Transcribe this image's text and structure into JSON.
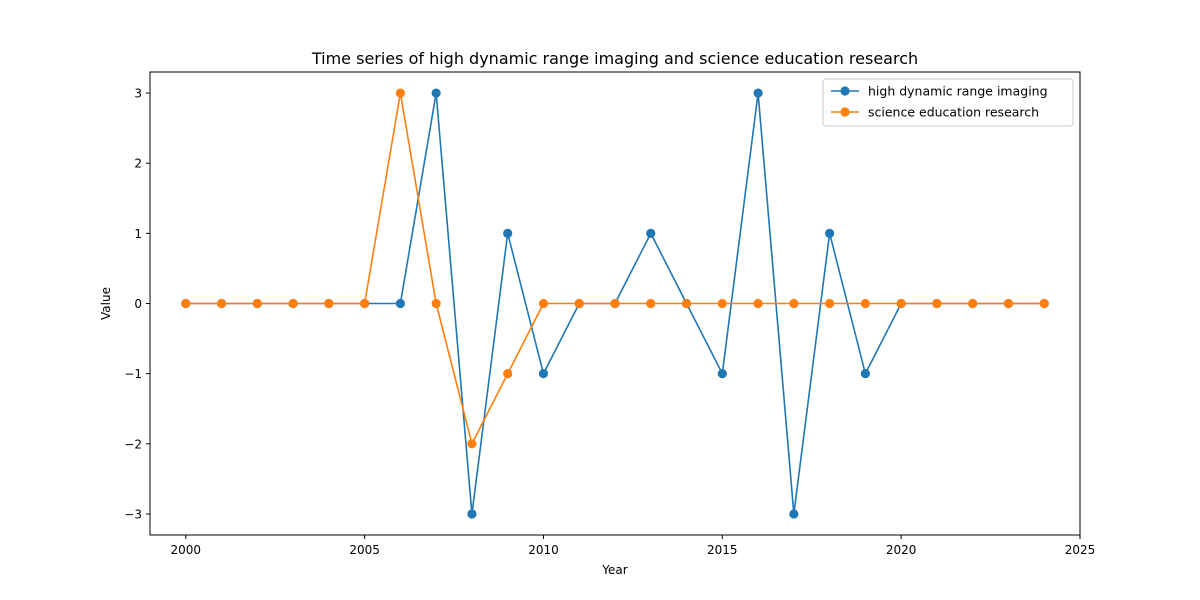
{
  "chart_data": {
    "type": "line",
    "title": "Time series of high dynamic range imaging and science education research",
    "xlabel": "Year",
    "ylabel": "Value",
    "xlim": [
      1999,
      2025
    ],
    "ylim": [
      -3.3,
      3.3
    ],
    "xticks": [
      2000,
      2005,
      2010,
      2015,
      2020,
      2025
    ],
    "yticks": [
      -3,
      -2,
      -1,
      0,
      1,
      2,
      3
    ],
    "ytick_labels": [
      "−3",
      "−2",
      "−1",
      "0",
      "1",
      "2",
      "3"
    ],
    "grid": false,
    "legend_position": "top-right",
    "x": [
      2000,
      2001,
      2002,
      2003,
      2004,
      2005,
      2006,
      2007,
      2008,
      2009,
      2010,
      2011,
      2012,
      2013,
      2014,
      2015,
      2016,
      2017,
      2018,
      2019,
      2020,
      2021,
      2022,
      2023,
      2024
    ],
    "series": [
      {
        "name": "high dynamic range imaging",
        "color": "#1f77b4",
        "values": [
          0,
          0,
          0,
          0,
          0,
          0,
          0,
          3,
          -3,
          1,
          -1,
          0,
          0,
          1,
          0,
          -1,
          3,
          -3,
          1,
          -1,
          0,
          0,
          0,
          0,
          0
        ]
      },
      {
        "name": "science education research",
        "color": "#ff7f0e",
        "values": [
          0,
          0,
          0,
          0,
          0,
          0,
          3,
          0,
          -2,
          -1,
          0,
          0,
          0,
          0,
          0,
          0,
          0,
          0,
          0,
          0,
          0,
          0,
          0,
          0,
          0
        ]
      }
    ]
  }
}
